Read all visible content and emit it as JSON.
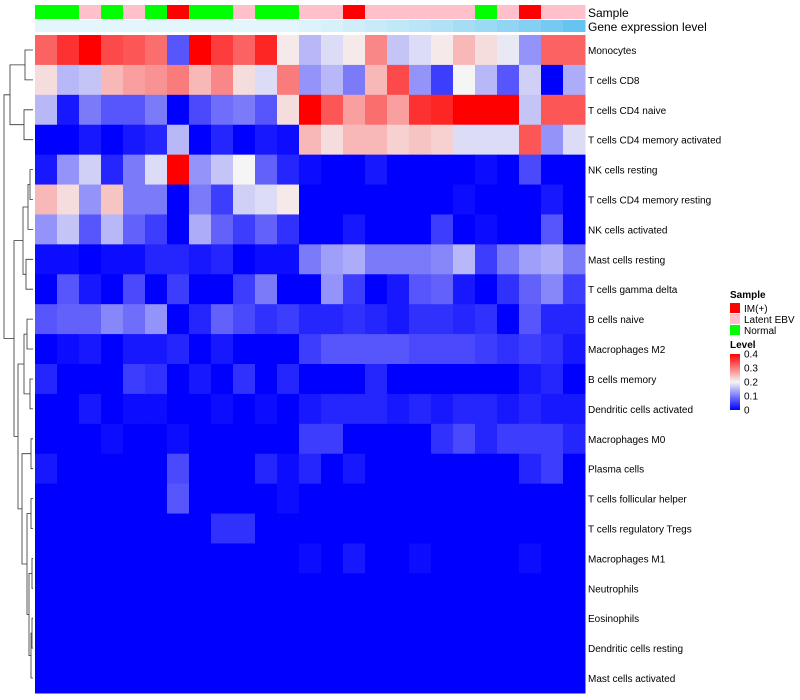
{
  "chart_data": {
    "type": "heatmap",
    "annotations": [
      {
        "title": "Sample",
        "values": [
          "Normal",
          "Normal",
          "Latent EBV",
          "Normal",
          "Latent EBV",
          "Normal",
          "IM(+)",
          "Normal",
          "Normal",
          "Latent EBV",
          "Normal",
          "Normal",
          "Latent EBV",
          "Latent EBV",
          "IM(+)",
          "Latent EBV",
          "Latent EBV",
          "Latent EBV",
          "Latent EBV",
          "Latent EBV",
          "Normal",
          "Latent EBV",
          "IM(+)",
          "Latent EBV",
          "Latent EBV"
        ]
      },
      {
        "title": "Gene expression level",
        "values": [
          0,
          0,
          0,
          0,
          0,
          0,
          0,
          0,
          0,
          0,
          0,
          0,
          1,
          2,
          3,
          4,
          5,
          6,
          7,
          8,
          9,
          10,
          11,
          12,
          13
        ]
      }
    ],
    "rows": [
      "Monocytes",
      "T cells CD8",
      "T cells CD4 naive",
      "T cells CD4 memory activated",
      "NK cells resting",
      "T cells CD4 memory resting",
      "NK cells activated",
      "Mast cells resting",
      "T cells gamma delta",
      "B cells naive",
      "Macrophages M2",
      "B cells memory",
      "Dendritic cells activated",
      "Macrophages M0",
      "Plasma cells",
      "T cells follicular helper",
      "T cells regulatory  Tregs",
      "Macrophages M1",
      "Neutrophils",
      "Eosinophils",
      "Dendritic cells resting",
      "Mast cells activated"
    ],
    "values": [
      [
        0.32,
        0.36,
        0.4,
        0.34,
        0.33,
        0.31,
        0.07,
        0.4,
        0.35,
        0.32,
        0.37,
        0.21,
        0.15,
        0.18,
        0.21,
        0.29,
        0.16,
        0.18,
        0.21,
        0.25,
        0.22,
        0.19,
        0.12,
        0.32,
        0.32
      ],
      [
        0.22,
        0.15,
        0.16,
        0.25,
        0.27,
        0.28,
        0.3,
        0.25,
        0.29,
        0.22,
        0.18,
        0.3,
        0.12,
        0.15,
        0.1,
        0.25,
        0.34,
        0.12,
        0.05,
        0.2,
        0.15,
        0.07,
        0.17,
        0.0,
        0.14
      ],
      [
        0.15,
        0.02,
        0.1,
        0.07,
        0.07,
        0.1,
        0.0,
        0.06,
        0.09,
        0.1,
        0.07,
        0.22,
        0.4,
        0.33,
        0.27,
        0.31,
        0.27,
        0.36,
        0.37,
        0.4,
        0.4,
        0.4,
        0.16,
        0.33,
        0.33
      ],
      [
        0.0,
        0.0,
        0.02,
        0.0,
        0.02,
        0.03,
        0.15,
        0.0,
        0.03,
        0.0,
        0.02,
        0.01,
        0.25,
        0.22,
        0.25,
        0.25,
        0.23,
        0.24,
        0.23,
        0.18,
        0.18,
        0.18,
        0.33,
        0.12,
        0.18
      ],
      [
        0.02,
        0.12,
        0.17,
        0.03,
        0.1,
        0.18,
        0.4,
        0.12,
        0.16,
        0.2,
        0.08,
        0.03,
        0.01,
        0.0,
        0.0,
        0.02,
        0.0,
        0.0,
        0.0,
        0.0,
        0.01,
        0.0,
        0.06,
        0.0,
        0.0
      ],
      [
        0.25,
        0.22,
        0.12,
        0.24,
        0.1,
        0.1,
        0.0,
        0.1,
        0.05,
        0.17,
        0.18,
        0.21,
        0.0,
        0.0,
        0.0,
        0.0,
        0.0,
        0.0,
        0.0,
        0.01,
        0.0,
        0.0,
        0.0,
        0.02,
        0.0
      ],
      [
        0.12,
        0.16,
        0.07,
        0.15,
        0.08,
        0.05,
        0.0,
        0.14,
        0.08,
        0.05,
        0.08,
        0.04,
        0.0,
        0.0,
        0.02,
        0.0,
        0.0,
        0.0,
        0.05,
        0.0,
        0.01,
        0.0,
        0.0,
        0.07,
        0.0
      ],
      [
        0.01,
        0.01,
        0.0,
        0.01,
        0.01,
        0.03,
        0.03,
        0.02,
        0.03,
        0.0,
        0.01,
        0.01,
        0.1,
        0.13,
        0.14,
        0.1,
        0.1,
        0.1,
        0.11,
        0.15,
        0.05,
        0.1,
        0.13,
        0.14,
        0.1
      ],
      [
        0.0,
        0.07,
        0.02,
        0.0,
        0.06,
        0.0,
        0.05,
        0.0,
        0.0,
        0.05,
        0.1,
        0.0,
        0.0,
        0.12,
        0.05,
        0.0,
        0.02,
        0.07,
        0.08,
        0.02,
        0.0,
        0.04,
        0.08,
        0.11,
        0.05
      ],
      [
        0.07,
        0.08,
        0.08,
        0.11,
        0.09,
        0.12,
        0.0,
        0.03,
        0.08,
        0.06,
        0.04,
        0.05,
        0.03,
        0.03,
        0.04,
        0.03,
        0.02,
        0.04,
        0.04,
        0.03,
        0.04,
        0.0,
        0.07,
        0.03,
        0.03
      ],
      [
        0.0,
        0.01,
        0.02,
        0.0,
        0.02,
        0.02,
        0.03,
        0.0,
        0.02,
        0.0,
        0.0,
        0.0,
        0.05,
        0.07,
        0.07,
        0.07,
        0.07,
        0.06,
        0.06,
        0.06,
        0.05,
        0.04,
        0.05,
        0.04,
        0.02
      ],
      [
        0.03,
        0.0,
        0.0,
        0.0,
        0.05,
        0.04,
        0.0,
        0.02,
        0.0,
        0.04,
        0.0,
        0.03,
        0.0,
        0.0,
        0.0,
        0.03,
        0.0,
        0.0,
        0.0,
        0.0,
        0.0,
        0.0,
        0.02,
        0.03,
        0.0
      ],
      [
        0.0,
        0.0,
        0.02,
        0.0,
        0.01,
        0.01,
        0.0,
        0.0,
        0.01,
        0.0,
        0.01,
        0.0,
        0.02,
        0.03,
        0.03,
        0.03,
        0.02,
        0.03,
        0.02,
        0.03,
        0.03,
        0.02,
        0.03,
        0.02,
        0.02
      ],
      [
        0.0,
        0.0,
        0.0,
        0.01,
        0.0,
        0.0,
        0.01,
        0.0,
        0.0,
        0.0,
        0.0,
        0.0,
        0.05,
        0.05,
        0.0,
        0.0,
        0.0,
        0.0,
        0.04,
        0.06,
        0.03,
        0.05,
        0.05,
        0.05,
        0.03
      ],
      [
        0.02,
        0.0,
        0.0,
        0.0,
        0.0,
        0.0,
        0.06,
        0.0,
        0.0,
        0.0,
        0.03,
        0.01,
        0.03,
        0.0,
        0.02,
        0.0,
        0.0,
        0.0,
        0.0,
        0.0,
        0.0,
        0.0,
        0.03,
        0.05,
        0.0
      ],
      [
        0.0,
        0.0,
        0.0,
        0.0,
        0.0,
        0.0,
        0.07,
        0.0,
        0.0,
        0.0,
        0.0,
        0.01,
        0.0,
        0.0,
        0.0,
        0.0,
        0.0,
        0.0,
        0.0,
        0.0,
        0.0,
        0.0,
        0.0,
        0.0,
        0.0
      ],
      [
        0.0,
        0.0,
        0.0,
        0.0,
        0.0,
        0.0,
        0.0,
        0.0,
        0.04,
        0.04,
        0.0,
        0.0,
        0.0,
        0.0,
        0.0,
        0.0,
        0.0,
        0.0,
        0.0,
        0.0,
        0.0,
        0.0,
        0.0,
        0.0,
        0.0
      ],
      [
        0.0,
        0.0,
        0.0,
        0.0,
        0.0,
        0.0,
        0.0,
        0.0,
        0.0,
        0.0,
        0.0,
        0.0,
        0.01,
        0.0,
        0.02,
        0.0,
        0.0,
        0.01,
        0.0,
        0.0,
        0.0,
        0.0,
        0.01,
        0.0,
        0.0
      ],
      [
        0.0,
        0.0,
        0.0,
        0.0,
        0.0,
        0.0,
        0.0,
        0.0,
        0.0,
        0.0,
        0.0,
        0.0,
        0.0,
        0.0,
        0.0,
        0.0,
        0.0,
        0.0,
        0.0,
        0.0,
        0.0,
        0.0,
        0.0,
        0.0,
        0.0
      ],
      [
        0.0,
        0.0,
        0.0,
        0.0,
        0.0,
        0.0,
        0.0,
        0.0,
        0.0,
        0.0,
        0.0,
        0.0,
        0.0,
        0.0,
        0.0,
        0.0,
        0.0,
        0.0,
        0.0,
        0.0,
        0.0,
        0.0,
        0.0,
        0.0,
        0.0
      ],
      [
        0.0,
        0.0,
        0.0,
        0.0,
        0.0,
        0.0,
        0.0,
        0.0,
        0.0,
        0.0,
        0.0,
        0.0,
        0.0,
        0.0,
        0.0,
        0.0,
        0.0,
        0.0,
        0.0,
        0.0,
        0.0,
        0.0,
        0.0,
        0.0,
        0.0
      ],
      [
        0.0,
        0.0,
        0.0,
        0.0,
        0.0,
        0.0,
        0.0,
        0.0,
        0.0,
        0.0,
        0.0,
        0.0,
        0.0,
        0.0,
        0.0,
        0.0,
        0.0,
        0.0,
        0.0,
        0.0,
        0.0,
        0.0,
        0.0,
        0.0,
        0.0
      ]
    ],
    "color_scale": {
      "min": 0,
      "mid": 0.2,
      "max": 0.4,
      "low": "#0000ff",
      "mid_color": "#f5f5f5",
      "high": "#ff0000"
    },
    "legend_sample": {
      "title": "Sample",
      "items": [
        {
          "label": "IM(+)",
          "color": "#ff0000"
        },
        {
          "label": "Latent EBV",
          "color": "#ffc0cb"
        },
        {
          "label": "Normal",
          "color": "#00ff00"
        }
      ]
    },
    "legend_level": {
      "title": "Level",
      "ticks": [
        "0.4",
        "0.3",
        "0.2",
        "0.1",
        "0"
      ],
      "tick_values": [
        0.4,
        0.3,
        0.2,
        0.1,
        0
      ]
    },
    "gene_level_colors": [
      "#e3f6fc",
      "#ddf3fb",
      "#d7f1fa",
      "#d0eef9",
      "#c9ebf8",
      "#c1e8f7",
      "#b9e5f6",
      "#b0e1f5",
      "#a6ddf5",
      "#9cd9f4",
      "#91d4f3",
      "#84cff3",
      "#76caf2",
      "#66c4f1"
    ]
  }
}
